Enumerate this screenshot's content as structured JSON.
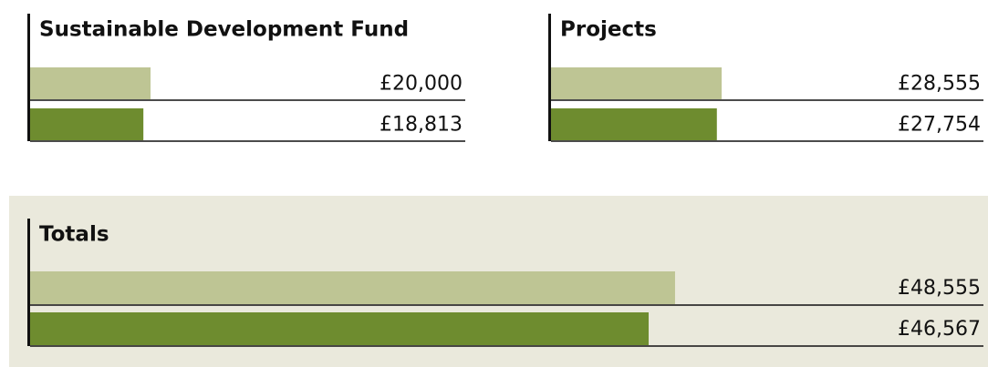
{
  "chart_data": [
    {
      "type": "bar",
      "title": "Sustainable Development Fund",
      "values": [
        20000,
        18813
      ],
      "value_labels": [
        "£20,000",
        "£18,813"
      ],
      "colors": [
        "#bec594",
        "#6e8c2f"
      ]
    },
    {
      "type": "bar",
      "title": "Projects",
      "values": [
        28555,
        27754
      ],
      "value_labels": [
        "£28,555",
        "£27,754"
      ],
      "colors": [
        "#bec594",
        "#6e8c2f"
      ]
    },
    {
      "type": "bar",
      "title": "Totals",
      "values": [
        48555,
        46567
      ],
      "value_labels": [
        "£48,555",
        "£46,567"
      ],
      "colors": [
        "#bec594",
        "#6e8c2f"
      ]
    }
  ]
}
